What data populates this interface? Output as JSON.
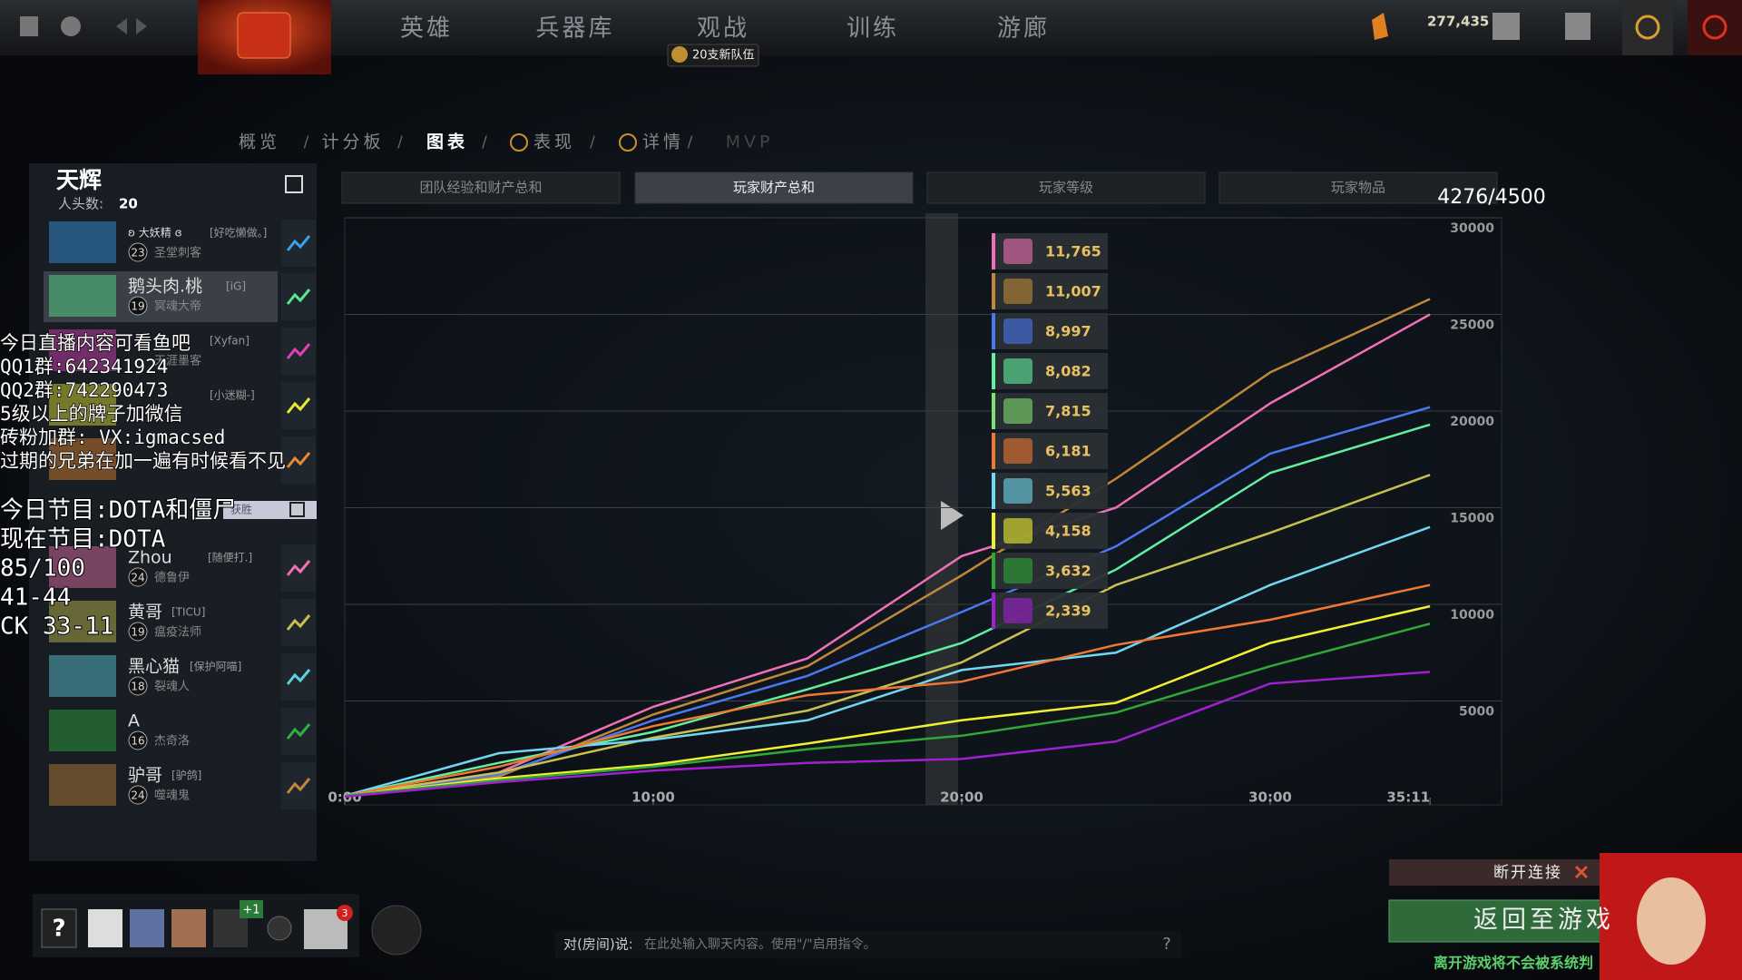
{
  "top_nav": {
    "items": [
      "英雄",
      "兵器库",
      "观战",
      "训练",
      "游廊"
    ],
    "badge": "20支新队伍",
    "currency": "277,435"
  },
  "tabs": [
    "概览",
    "计分板",
    "图表",
    "表现",
    "详情",
    "MVP"
  ],
  "radiant": {
    "name": "天辉",
    "kills_label": "人头数:",
    "kills": "20"
  },
  "players": [
    {
      "name": "ʚ 大妖精 ɞ",
      "tag": "[好吃懒做。]",
      "level": "23",
      "hero": "圣堂刺客",
      "color": "#3aa0e8"
    },
    {
      "name": "鹅头肉.桃",
      "tag": "[iG]",
      "level": "19",
      "hero": "冥魂大帝",
      "color": "#58e890"
    },
    {
      "tag": "[Xyfan]",
      "hero": "天涯墨客",
      "color": "#e040c0"
    },
    {
      "tag": "[小迷糊-]",
      "color": "#e8e830"
    },
    {
      "color": "#e88830"
    },
    {
      "name": "Zhou",
      "tag": "[随便打.]",
      "level": "24",
      "hero": "德鲁伊",
      "color": "#f070b0"
    },
    {
      "name": "黄哥",
      "tag": "[TICU]",
      "level": "19",
      "hero": "瘟疫法师",
      "color": "#c8c050"
    },
    {
      "name": "黑心猫",
      "tag": "[保护阿喵]",
      "level": "18",
      "hero": "裂魂人",
      "color": "#60d0e0"
    },
    {
      "name": "A",
      "level": "16",
      "hero": "杰奇洛",
      "color": "#30b040"
    },
    {
      "name": "驴哥",
      "tag": "[驴鸽]",
      "level": "24",
      "hero": "噬魂鬼",
      "color": "#c08838"
    }
  ],
  "dire": {
    "result": "获胜"
  },
  "graph_tabs": [
    "团队经验和财产总和",
    "玩家财产总和",
    "玩家等级",
    "玩家物品"
  ],
  "counter": "4276/4500",
  "chart": {
    "type": "line",
    "x": [
      0,
      5,
      10,
      15,
      20,
      25,
      30,
      35.18
    ],
    "xlim": [
      0,
      37.5
    ],
    "xticks": [
      {
        "value": 0,
        "label": "0:00"
      },
      {
        "value": 10,
        "label": "10:00"
      },
      {
        "value": 20,
        "label": "20:00"
      },
      {
        "value": 30,
        "label": "30:00"
      },
      {
        "value": 35.18,
        "label": "35:11"
      }
    ],
    "ylim": [
      0,
      30000
    ],
    "yticks": [
      5000,
      10000,
      15000,
      20000,
      25000,
      30000
    ],
    "grid": true,
    "series": [
      {
        "color": "#f070b8",
        "values": [
          100,
          1300,
          4700,
          7200,
          12500,
          15000,
          20400,
          25000
        ]
      },
      {
        "color": "#c08838",
        "values": [
          100,
          1100,
          4300,
          6800,
          11500,
          16500,
          22000,
          25800
        ]
      },
      {
        "color": "#4a78f0",
        "values": [
          100,
          1200,
          4000,
          6300,
          9600,
          13000,
          17800,
          20200
        ]
      },
      {
        "color": "#60f0a0",
        "values": [
          100,
          1800,
          3400,
          5600,
          8000,
          11800,
          16800,
          19300
        ]
      },
      {
        "color": "#c8c050",
        "values": [
          100,
          1300,
          3100,
          4500,
          7000,
          11000,
          13700,
          16700
        ]
      },
      {
        "color": "#70d8f0",
        "values": [
          100,
          2300,
          3000,
          4000,
          6600,
          7500,
          11000,
          14000
        ]
      },
      {
        "color": "#f07830",
        "values": [
          100,
          1600,
          3700,
          5300,
          6000,
          7900,
          9200,
          11000
        ]
      },
      {
        "color": "#f0f030",
        "values": [
          100,
          1000,
          1700,
          2800,
          4000,
          4900,
          8000,
          9900
        ]
      },
      {
        "color": "#30a838",
        "values": [
          100,
          900,
          1600,
          2500,
          3200,
          4400,
          6800,
          9000
        ]
      },
      {
        "color": "#a020d0",
        "values": [
          50,
          800,
          1400,
          1800,
          2000,
          2900,
          5900,
          6500
        ]
      }
    ],
    "tooltip": [
      {
        "value": "11,765",
        "color": "#f070b8"
      },
      {
        "value": "11,007",
        "color": "#c08838"
      },
      {
        "value": "8,997",
        "color": "#4a78f0"
      },
      {
        "value": "8,082",
        "color": "#60f0a0"
      },
      {
        "value": "7,815",
        "color": "#80e070"
      },
      {
        "value": "6,181",
        "color": "#f07830"
      },
      {
        "value": "5,563",
        "color": "#70d8f0"
      },
      {
        "value": "4,158",
        "color": "#f0f030"
      },
      {
        "value": "3,632",
        "color": "#30a838"
      },
      {
        "value": "2,339",
        "color": "#a020d0"
      }
    ]
  },
  "overlay": {
    "small": [
      "今日直播内容可看鱼吧",
      "QQ1群:642341924",
      "QQ2群:742290473",
      "5级以上的牌子加微信",
      "砖粉加群: VX:igmacsed",
      "过期的兄弟在加一遍有时候看不见"
    ],
    "large": [
      "今日节目:DOTA和僵尸",
      "现在节目:DOTA",
      "85/100",
      "41-44",
      "CK 33-11"
    ]
  },
  "bottom": {
    "party_badge": "+1",
    "notifications": "3",
    "chat_label": "对(房间)说:",
    "chat_placeholder": "在此处输入聊天内容。使用\"/\"启用指令。",
    "help": "?",
    "disconnect": "断开连接",
    "return": "返回至游戏",
    "warning": "离开游戏将不会被系统判"
  }
}
